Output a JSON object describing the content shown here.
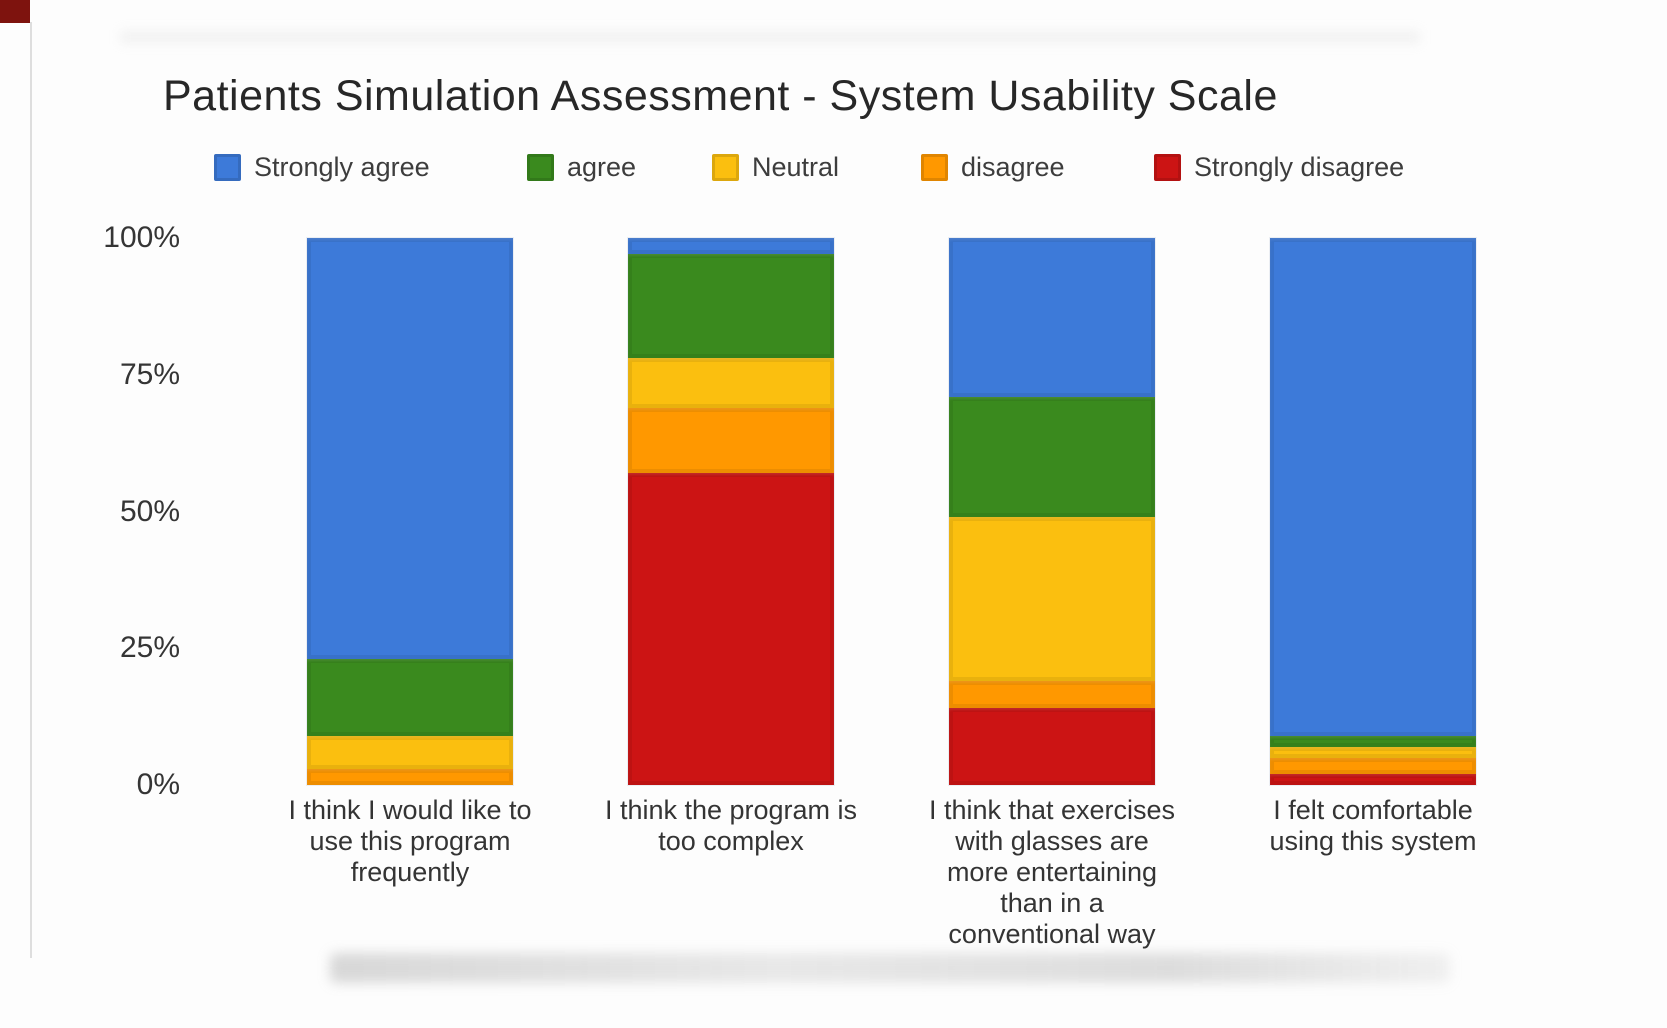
{
  "title": "Patients Simulation Assessment - System Usability Scale",
  "legend": {
    "items": [
      {
        "label": "Strongly agree",
        "color": "#3d7ad9"
      },
      {
        "label": "agree",
        "color": "#3a8a1e"
      },
      {
        "label": "Neutral",
        "color": "#fbbf0f"
      },
      {
        "label": "disagree",
        "color": "#ff9800"
      },
      {
        "label": "Strongly disagree",
        "color": "#cc1414"
      }
    ]
  },
  "y_axis": {
    "ticks": [
      {
        "label": "100%",
        "value": 100
      },
      {
        "label": "75%",
        "value": 75
      },
      {
        "label": "50%",
        "value": 50
      },
      {
        "label": "25%",
        "value": 25
      },
      {
        "label": "0%",
        "value": 0
      }
    ]
  },
  "chart_data": {
    "type": "bar",
    "stacked": true,
    "unit": "percent",
    "ylim": [
      0,
      100
    ],
    "grid": false,
    "legend_position": "top",
    "title": "Patients Simulation Assessment - System Usability Scale",
    "xlabel": "",
    "ylabel": "",
    "categories": [
      "I think I would like to use this program frequently",
      "I think the program is too complex",
      "I think that exercises with glasses are more entertaining than in a conventional way",
      "I felt comfortable using this system"
    ],
    "category_lines": [
      [
        "I think I would like to",
        "use this program",
        "frequently"
      ],
      [
        "I think the program is",
        "too complex"
      ],
      [
        "I think that exercises",
        "with glasses are",
        "more entertaining",
        "than in a",
        "conventional way"
      ],
      [
        "I felt comfortable",
        "using this system"
      ]
    ],
    "series": [
      {
        "name": "Strongly agree",
        "color": "#3d7ad9",
        "values": [
          77,
          3,
          29,
          91
        ]
      },
      {
        "name": "agree",
        "color": "#3a8a1e",
        "values": [
          14,
          19,
          22,
          2
        ]
      },
      {
        "name": "Neutral",
        "color": "#fbbf0f",
        "values": [
          6,
          9,
          30,
          2
        ]
      },
      {
        "name": "disagree",
        "color": "#ff9800",
        "values": [
          3,
          12,
          5,
          3
        ]
      },
      {
        "name": "Strongly disagree",
        "color": "#cc1414",
        "values": [
          0,
          57,
          14,
          2
        ]
      }
    ]
  }
}
